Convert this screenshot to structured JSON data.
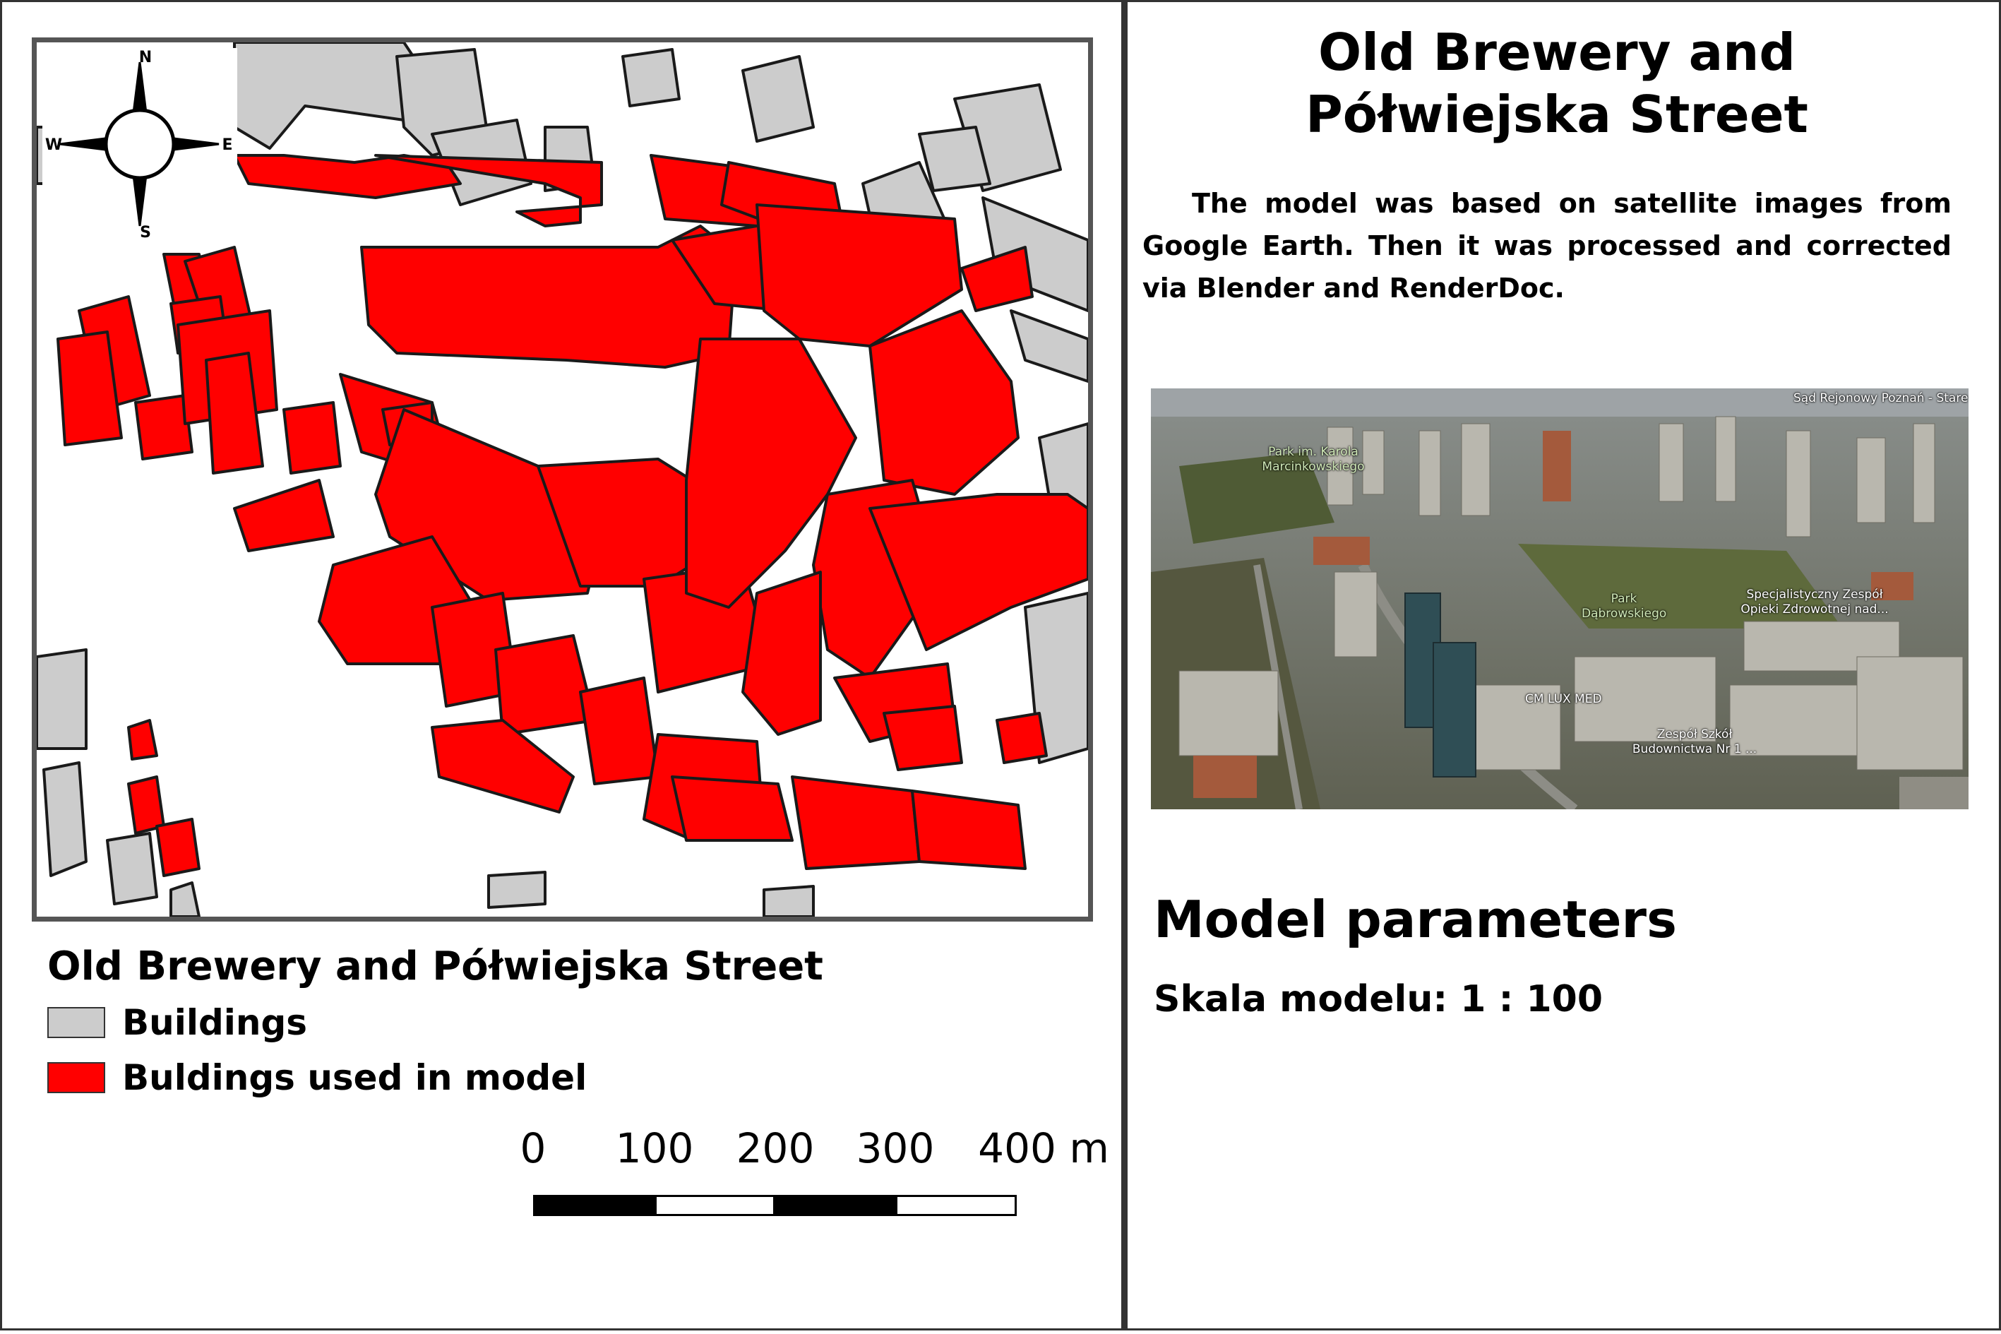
{
  "map": {
    "compass": {
      "n": "N",
      "s": "S",
      "e": "E",
      "w": "W"
    },
    "colors": {
      "buildings": "#cccccc",
      "model": "#ff0000",
      "outline": "#1a1a1a",
      "frame": "#555555"
    }
  },
  "legend": {
    "title": "Old Brewery and Półwiejska Street",
    "items": [
      {
        "label": "Buildings",
        "color": "#cccccc"
      },
      {
        "label": "Buldings used in model",
        "color": "#ff0000"
      }
    ]
  },
  "scalebar": {
    "labels": [
      "0",
      "100",
      "200",
      "300",
      "400 m"
    ]
  },
  "info": {
    "title": "Old Brewery and Półwiejska Street",
    "description": "The model was based on satellite images from Google Earth. Then it was processed and corrected via Blender and RenderDoc.",
    "satellite_labels": [
      "Sąd Rejonowy Poznań - Stare Miasto w Poznaniu",
      "Park im. Karola Marcinkowskiego",
      "Park Dąbrowskiego",
      "Specjalistyczny Zespół Opieki Zdrowotnej nad...",
      "CM LUX MED",
      "Zespół Szkół Budownictwa Nr 1 ..."
    ],
    "params_title": "Model parameters",
    "params": "Skala modelu: 1 : 100"
  }
}
